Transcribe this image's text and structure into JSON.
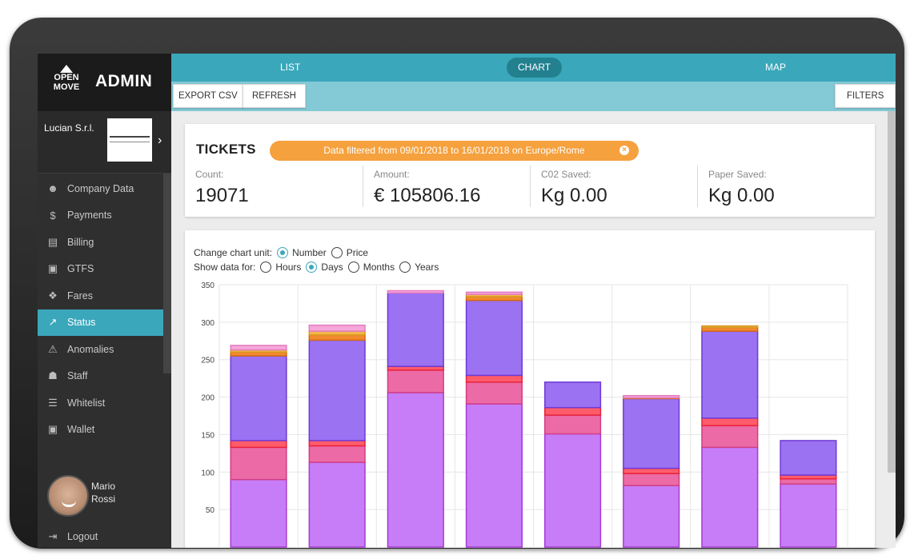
{
  "brand": {
    "logo_lines": [
      "OPEN",
      "MOVE"
    ],
    "title": "ADMIN"
  },
  "company": {
    "name": "Lucian S.r.l."
  },
  "sidebar": {
    "items": [
      {
        "label": "Company Data",
        "icon": "user-icon",
        "glyph": "☻",
        "active": false
      },
      {
        "label": "Payments",
        "icon": "dollar-icon",
        "glyph": "$",
        "active": false
      },
      {
        "label": "Billing",
        "icon": "document-icon",
        "glyph": "▤",
        "active": false
      },
      {
        "label": "GTFS",
        "icon": "bus-icon",
        "glyph": "▣",
        "active": false
      },
      {
        "label": "Fares",
        "icon": "ticket-icon",
        "glyph": "❖",
        "active": false
      },
      {
        "label": "Status",
        "icon": "line-chart-icon",
        "glyph": "↗",
        "active": true
      },
      {
        "label": "Anomalies",
        "icon": "warning-icon",
        "glyph": "⚠",
        "active": false
      },
      {
        "label": "Staff",
        "icon": "group-icon",
        "glyph": "☗",
        "active": false
      },
      {
        "label": "Whitelist",
        "icon": "list-icon",
        "glyph": "☰",
        "active": false
      },
      {
        "label": "Wallet",
        "icon": "wallet-icon",
        "glyph": "▣",
        "active": false
      }
    ]
  },
  "user": {
    "first_name": "Mario",
    "last_name": "Rossi"
  },
  "logout": {
    "label": "Logout",
    "icon": "logout-icon"
  },
  "tabs": [
    {
      "label": "LIST",
      "active": false
    },
    {
      "label": "CHART",
      "active": true
    },
    {
      "label": "MAP",
      "active": false
    }
  ],
  "toolbar": {
    "export_label": "EXPORT CSV",
    "refresh_label": "REFRESH",
    "filters_label": "FILTERS"
  },
  "tickets": {
    "title": "TICKETS",
    "filter_text": "Data filtered from 09/01/2018 to 16/01/2018 on Europe/Rome",
    "stats": [
      {
        "label": "Count:",
        "value": "19071"
      },
      {
        "label": "Amount:",
        "value": "€ 105806.16"
      },
      {
        "label": "C02 Saved:",
        "value": "Kg 0.00"
      },
      {
        "label": "Paper Saved:",
        "value": "Kg 0.00"
      }
    ]
  },
  "chart_controls": {
    "unit_label": "Change chart unit:",
    "unit_options": [
      {
        "label": "Number",
        "selected": true
      },
      {
        "label": "Price",
        "selected": false
      }
    ],
    "period_label": "Show data for:",
    "period_options": [
      {
        "label": "Hours",
        "selected": false
      },
      {
        "label": "Days",
        "selected": true
      },
      {
        "label": "Months",
        "selected": false
      },
      {
        "label": "Years",
        "selected": false
      }
    ]
  },
  "colors": {
    "accent": "#3aa7bb",
    "pill": "#f5a13e",
    "series": [
      "#c77df7",
      "#ec6aa6",
      "#ff5c6b",
      "#9a72f2",
      "#f28a2f",
      "#f2b84b",
      "#f6a6d8"
    ],
    "series_stroke": [
      "#a73ad6",
      "#d23e86",
      "#e8233b",
      "#6f3bd6",
      "#d46a13",
      "#d99a20",
      "#e27cc0"
    ]
  },
  "chart_data": {
    "type": "bar",
    "stacked": true,
    "categories": [
      "",
      "",
      "",
      "",
      "",
      "",
      "",
      ""
    ],
    "ylim": [
      0,
      350
    ],
    "yticks": [
      50,
      100,
      150,
      200,
      250,
      300,
      350
    ],
    "grid": true,
    "series": [
      {
        "values": [
          90,
          113,
          206,
          191,
          151,
          82,
          133,
          84
        ]
      },
      {
        "values": [
          43,
          22,
          30,
          29,
          25,
          16,
          29,
          7
        ]
      },
      {
        "values": [
          9,
          7,
          5,
          9,
          10,
          7,
          10,
          5
        ]
      },
      {
        "values": [
          113,
          134,
          98,
          100,
          34,
          93,
          116,
          46
        ]
      },
      {
        "values": [
          5,
          7,
          0,
          5,
          0,
          1,
          5,
          0
        ]
      },
      {
        "values": [
          3,
          5,
          0,
          3,
          0,
          0,
          2,
          0
        ]
      },
      {
        "values": [
          6,
          8,
          3,
          3,
          0,
          3,
          0,
          0
        ]
      }
    ]
  }
}
